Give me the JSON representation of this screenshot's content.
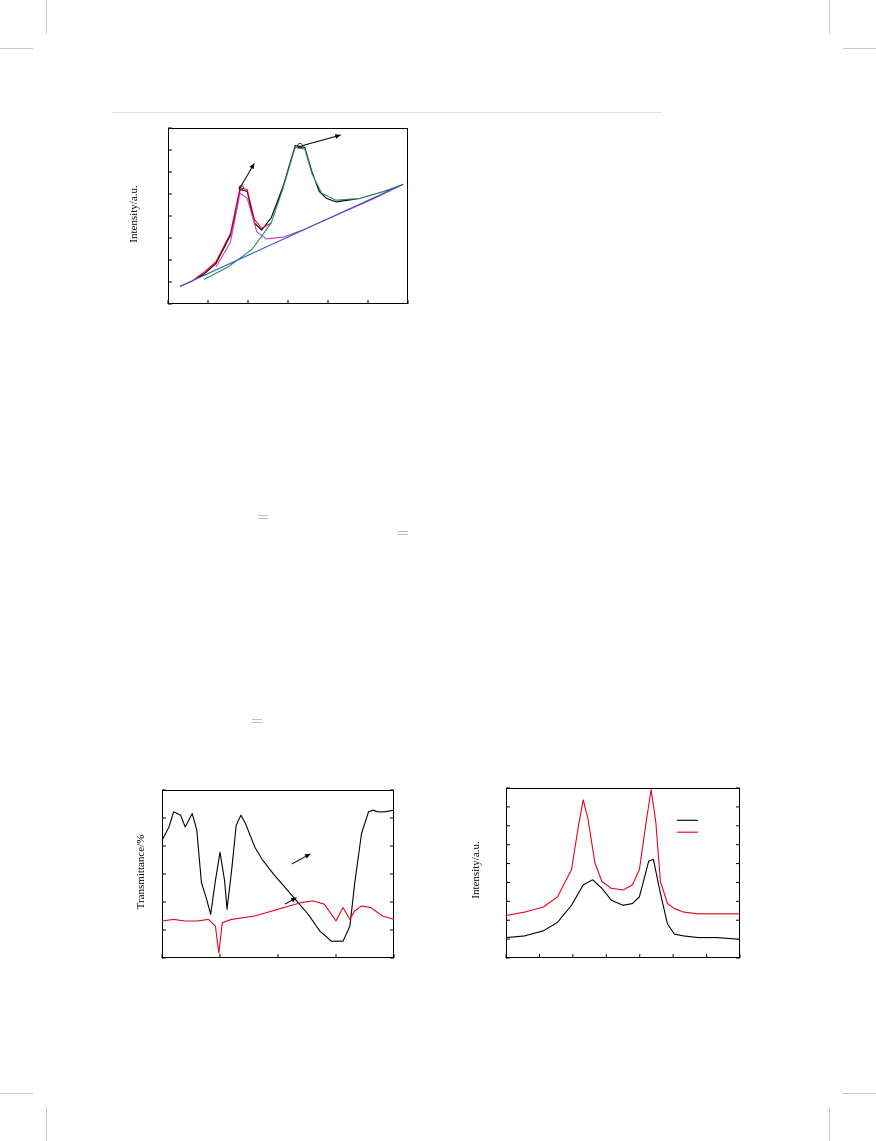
{
  "figures": {
    "deconv": {
      "ylabel": "Intensity/a.u."
    },
    "ftir": {
      "ylabel": "Transmittance/%"
    },
    "xrd": {
      "ylabel": "Intensity/a.u."
    }
  },
  "chart_data": [
    {
      "type": "line",
      "title": "",
      "ylabel": "Intensity/a.u.",
      "xlabel": "",
      "x_ticks": 6,
      "y_ticks": 8,
      "xlim": [
        0,
        10
      ],
      "ylim": [
        0,
        10
      ],
      "series": [
        {
          "color": "#000000",
          "x": [
            0.5,
            1.0,
            1.5,
            2.0,
            2.6,
            3.0,
            3.3,
            3.6,
            3.9,
            4.3,
            4.8,
            5.3,
            5.7,
            6.0,
            6.3,
            6.6,
            7.0,
            7.5,
            8.0,
            8.5,
            9.0,
            9.5,
            9.8
          ],
          "y": [
            1.0,
            1.3,
            1.7,
            2.3,
            3.9,
            6.5,
            6.4,
            4.6,
            4.2,
            4.9,
            6.7,
            9.0,
            8.9,
            7.5,
            6.4,
            6.0,
            5.8,
            5.9,
            6.0,
            6.2,
            6.4,
            6.6,
            6.8
          ]
        },
        {
          "color": "#e8001c",
          "x": [
            0.5,
            1.0,
            1.5,
            2.0,
            2.6,
            3.0,
            3.3,
            3.6,
            3.9,
            4.3
          ],
          "y": [
            1.0,
            1.3,
            1.8,
            2.4,
            4.0,
            6.6,
            6.5,
            4.8,
            4.3,
            4.6
          ]
        },
        {
          "color": "#c040c0",
          "x": [
            2.0,
            2.6,
            3.0,
            3.3,
            3.7,
            4.1,
            4.8,
            5.6,
            6.6,
            7.6,
            8.6,
            9.8
          ],
          "y": [
            2.1,
            3.5,
            6.3,
            6.0,
            4.1,
            3.7,
            3.8,
            4.2,
            4.8,
            5.4,
            6.0,
            6.8
          ]
        },
        {
          "color": "#2e8b57",
          "x": [
            1.5,
            2.5,
            3.5,
            4.3,
            4.8,
            5.3,
            5.7,
            6.0,
            6.4,
            7.0,
            8.0,
            9.0,
            9.8
          ],
          "y": [
            1.4,
            2.1,
            3.1,
            4.6,
            6.6,
            8.9,
            8.8,
            7.4,
            6.3,
            5.9,
            6.0,
            6.4,
            6.8
          ]
        },
        {
          "color": "#3050d0",
          "x": [
            0.5,
            9.8
          ],
          "y": [
            1.0,
            6.8
          ]
        }
      ]
    },
    {
      "type": "line",
      "title": "",
      "ylabel": "Transmittance/%",
      "xlabel": "",
      "x_ticks": 4,
      "y_ticks": 6,
      "xlim": [
        0,
        10
      ],
      "ylim": [
        0,
        10
      ],
      "series": [
        {
          "color": "#000000",
          "x": [
            0.0,
            0.3,
            0.5,
            0.8,
            1.0,
            1.3,
            1.5,
            1.7,
            1.9,
            2.1,
            2.3,
            2.5,
            2.7,
            2.8,
            3.0,
            3.2,
            3.4,
            3.6,
            3.8,
            4.0,
            4.3,
            4.8,
            5.3,
            5.8,
            6.3,
            6.8,
            7.3,
            7.8,
            8.1,
            8.3,
            8.6,
            8.9,
            9.1,
            9.3,
            9.6,
            10.0
          ],
          "y": [
            7.0,
            7.8,
            8.7,
            8.5,
            7.8,
            8.6,
            7.6,
            4.5,
            3.6,
            2.6,
            4.6,
            6.3,
            4.6,
            2.9,
            5.2,
            7.9,
            8.5,
            8.0,
            7.3,
            6.6,
            5.9,
            5.0,
            4.2,
            3.4,
            2.6,
            1.6,
            1.0,
            1.0,
            1.9,
            4.4,
            7.4,
            8.7,
            8.8,
            8.7,
            8.7,
            8.8
          ]
        },
        {
          "color": "#e8001c",
          "x": [
            0.0,
            0.5,
            1.0,
            1.5,
            2.0,
            2.3,
            2.45,
            2.6,
            3.0,
            3.5,
            4.0,
            4.5,
            5.0,
            5.5,
            6.0,
            6.5,
            7.0,
            7.3,
            7.5,
            7.8,
            8.1,
            8.3,
            8.6,
            9.0,
            9.5,
            10.0
          ],
          "y": [
            2.2,
            2.3,
            2.2,
            2.2,
            2.3,
            1.9,
            0.3,
            2.1,
            2.3,
            2.4,
            2.5,
            2.7,
            2.9,
            3.1,
            3.3,
            3.4,
            3.2,
            2.6,
            2.2,
            3.0,
            2.3,
            2.8,
            3.1,
            3.0,
            2.5,
            2.3
          ]
        }
      ]
    },
    {
      "type": "line",
      "title": "",
      "ylabel": "Intensity/a.u.",
      "xlabel": "",
      "x_ticks": 7,
      "y_ticks": 9,
      "xlim": [
        0,
        10
      ],
      "ylim": [
        0,
        10
      ],
      "legend": "top-right",
      "series": [
        {
          "color": "#000000",
          "x": [
            0.0,
            0.8,
            1.6,
            2.2,
            2.8,
            3.3,
            3.7,
            4.1,
            4.5,
            5.0,
            5.4,
            5.7,
            6.1,
            6.3,
            6.6,
            6.9,
            7.2,
            7.6,
            8.2,
            9.0,
            10.0
          ],
          "y": [
            1.2,
            1.3,
            1.6,
            2.1,
            3.1,
            4.3,
            4.6,
            4.1,
            3.4,
            3.1,
            3.2,
            3.6,
            5.7,
            5.8,
            3.8,
            2.0,
            1.4,
            1.3,
            1.2,
            1.2,
            1.1
          ]
        },
        {
          "color": "#e8001c",
          "x": [
            0.0,
            0.8,
            1.6,
            2.2,
            2.8,
            3.1,
            3.3,
            3.5,
            3.8,
            4.1,
            4.5,
            5.0,
            5.4,
            5.7,
            6.0,
            6.2,
            6.4,
            6.6,
            6.9,
            7.2,
            7.6,
            8.2,
            9.0,
            10.0
          ],
          "y": [
            2.5,
            2.7,
            3.0,
            3.6,
            5.2,
            7.8,
            9.3,
            8.2,
            5.6,
            4.5,
            4.1,
            4.0,
            4.3,
            5.2,
            8.1,
            9.9,
            8.0,
            4.5,
            3.2,
            2.9,
            2.7,
            2.6,
            2.6,
            2.6
          ]
        }
      ]
    }
  ]
}
